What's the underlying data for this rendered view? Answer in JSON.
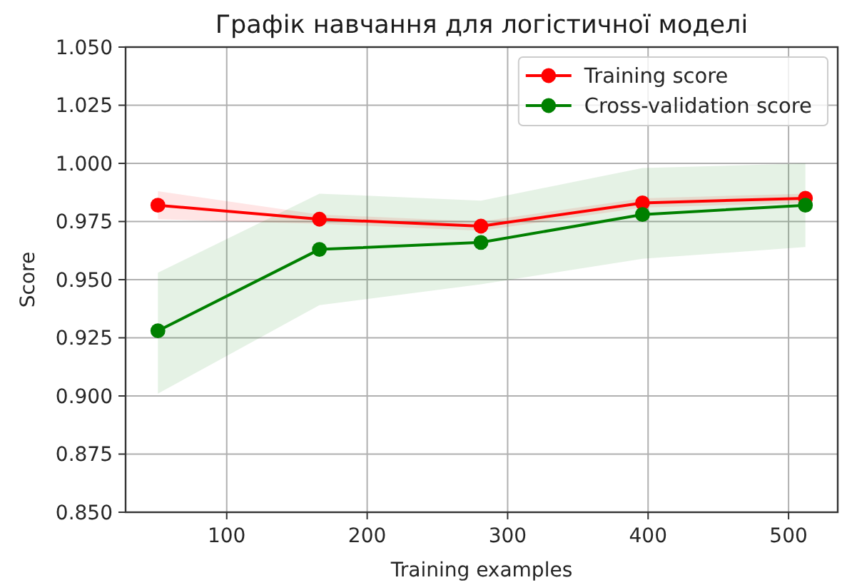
{
  "chart_data": {
    "type": "line",
    "title": "Графік навчання для логістичної моделі",
    "xlabel": "Training examples",
    "ylabel": "Score",
    "x": [
      51,
      166,
      281,
      396,
      512
    ],
    "series": [
      {
        "name": "Training score",
        "color": "#ff0000",
        "values": [
          0.982,
          0.976,
          0.973,
          0.983,
          0.985
        ],
        "lower": [
          0.976,
          0.974,
          0.971,
          0.981,
          0.983
        ],
        "upper": [
          0.988,
          0.978,
          0.975,
          0.985,
          0.987
        ]
      },
      {
        "name": "Cross-validation score",
        "color": "#008000",
        "values": [
          0.928,
          0.963,
          0.966,
          0.978,
          0.982
        ],
        "lower": [
          0.901,
          0.939,
          0.948,
          0.959,
          0.964
        ],
        "upper": [
          0.953,
          0.987,
          0.984,
          0.998,
          1.0
        ]
      }
    ],
    "xlim": [
      28,
      535
    ],
    "xticks": [
      100,
      200,
      300,
      400,
      500
    ],
    "ylim": [
      0.85,
      1.05
    ],
    "yticks": [
      {
        "value": 0.85,
        "label": "0.850"
      },
      0.875,
      {
        "value": 0.9,
        "label": "0.900"
      },
      0.925,
      {
        "value": 0.95,
        "label": "0.950"
      },
      0.975,
      {
        "value": 1.0,
        "label": "1.000"
      },
      1.025,
      {
        "value": 1.05,
        "label": "1.050"
      }
    ],
    "grid": true,
    "legend": "top right",
    "marker": "circle",
    "line_style": "solid"
  }
}
